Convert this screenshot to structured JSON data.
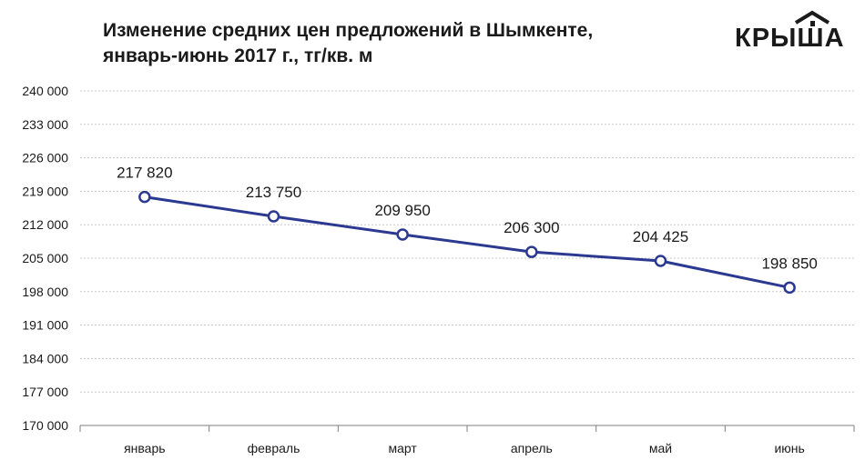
{
  "header": {
    "title_line1": "Изменение средних цен предложений в Шымкенте,",
    "title_line2": "январь-июнь 2017 г., тг/кв. м"
  },
  "logo": {
    "text": "КРЫША",
    "icon": "house-roof-icon",
    "color": "#1a1a1a"
  },
  "chart_data": {
    "type": "line",
    "title": "Изменение средних цен предложений в Шымкенте, январь-июнь 2017 г., тг/кв. м",
    "xlabel": "",
    "ylabel": "",
    "categories": [
      "январь",
      "февраль",
      "март",
      "апрель",
      "май",
      "июнь"
    ],
    "values": [
      217820,
      213750,
      209950,
      206300,
      204425,
      198850
    ],
    "data_labels": [
      "217 820",
      "213 750",
      "209 950",
      "206 300",
      "204 425",
      "198 850"
    ],
    "ylim": [
      170000,
      240000
    ],
    "y_ticks": [
      170000,
      177000,
      184000,
      191000,
      198000,
      205000,
      212000,
      219000,
      226000,
      233000,
      240000
    ],
    "y_tick_labels": [
      "170 000",
      "177 000",
      "184 000",
      "191 000",
      "198 000",
      "205 000",
      "212 000",
      "219 000",
      "226 000",
      "233 000",
      "240 000"
    ],
    "grid": true,
    "legend": "none",
    "line_color": "#2b3990",
    "grid_color": "#c8c8c8",
    "axis_color": "#7f7f7f"
  }
}
